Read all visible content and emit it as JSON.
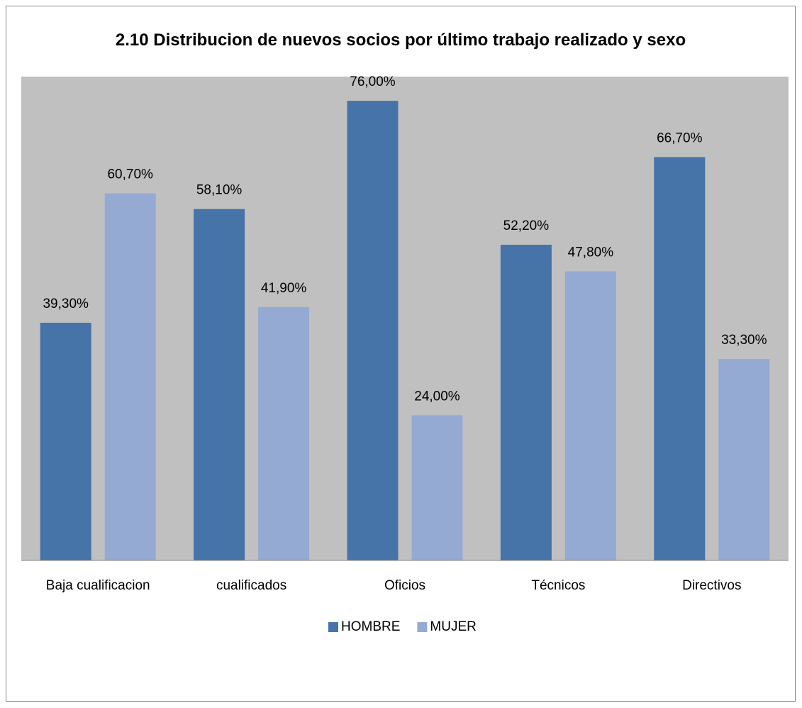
{
  "chart_data": {
    "type": "bar",
    "title": "2.10 Distribucion de nuevos socios por último trabajo realizado y sexo",
    "categories": [
      "Baja cualificacion",
      "cualificados",
      "Oficios",
      "Técnicos",
      "Directivos"
    ],
    "series": [
      {
        "name": "HOMBRE",
        "color": "#4673a8",
        "values": [
          39.3,
          58.1,
          76,
          52.2,
          66.7
        ],
        "value_labels": [
          "39,30%",
          "58,10%",
          "76,00%",
          "52,20%",
          "66,70%"
        ]
      },
      {
        "name": "MUJER",
        "color": "#95aad3",
        "values": [
          60.7,
          41.9,
          24,
          47.8,
          33.3
        ],
        "value_labels": [
          "60,70%",
          "41,90%",
          "24,00%",
          "47,80%",
          "33,30%"
        ]
      }
    ],
    "ylim": [
      0,
      80
    ],
    "legend": "bottom"
  }
}
